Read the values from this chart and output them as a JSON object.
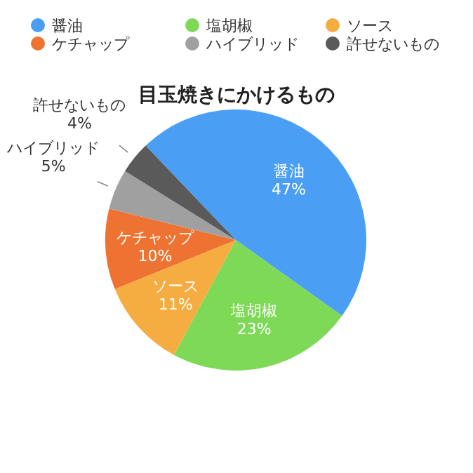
{
  "chart_data": {
    "type": "pie",
    "title": "目玉焼きにかけるもの",
    "categories": [
      "醤油",
      "塩胡椒",
      "ソース",
      "ケチャップ",
      "ハイブリッド",
      "許せないもの"
    ],
    "values": [
      47,
      23,
      11,
      10,
      5,
      4
    ],
    "value_labels": [
      "47%",
      "23%",
      "11%",
      "10%",
      "5%",
      "4%"
    ],
    "colors": [
      "#4a9ff5",
      "#7ed957",
      "#f5ad42",
      "#ee7332",
      "#a0a0a0",
      "#5a5a5a"
    ],
    "legend": "top"
  }
}
